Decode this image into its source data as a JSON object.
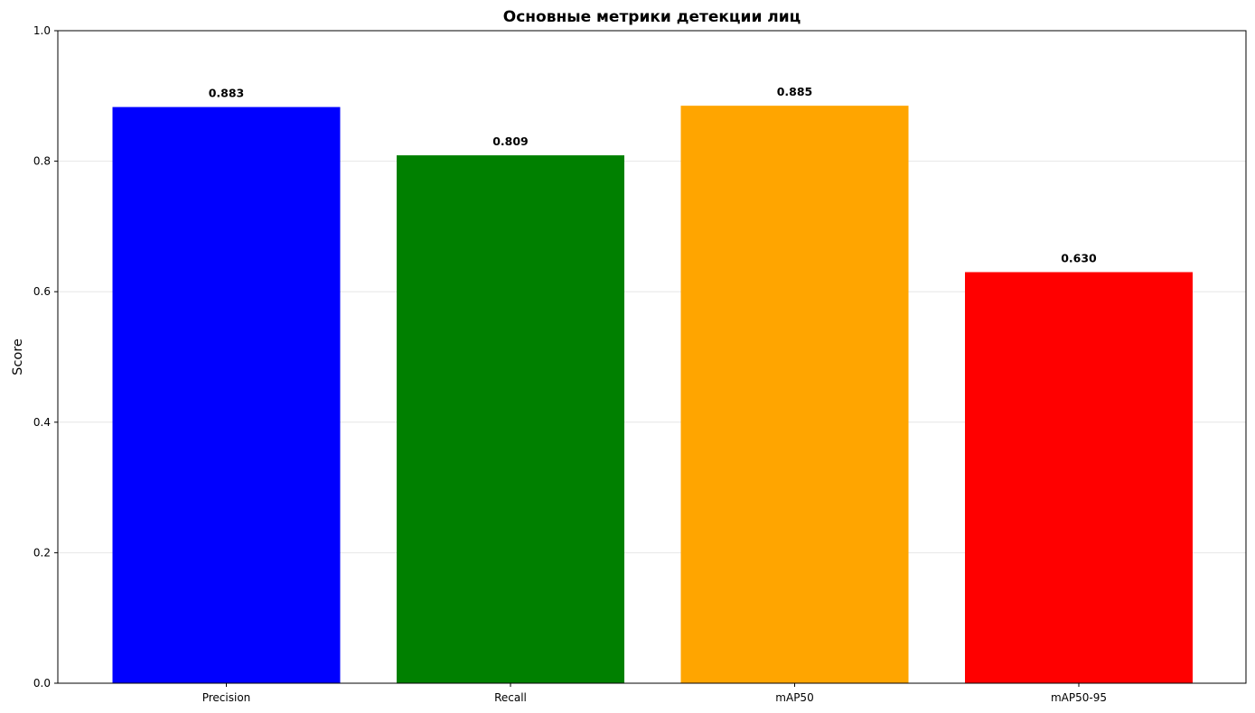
{
  "chart_data": {
    "type": "bar",
    "title": "Основные метрики детекции лиц",
    "xlabel": "",
    "ylabel": "Score",
    "categories": [
      "Precision",
      "Recall",
      "mAP50",
      "mAP50-95"
    ],
    "values": [
      0.883,
      0.809,
      0.885,
      0.63
    ],
    "value_labels": [
      "0.883",
      "0.809",
      "0.885",
      "0.630"
    ],
    "colors": [
      "#0000ff",
      "#008000",
      "#ffa500",
      "#ff0000"
    ],
    "ylim": [
      0,
      1.0
    ],
    "yticks": [
      0.0,
      0.2,
      0.4,
      0.6,
      0.8,
      1.0
    ],
    "ytick_labels": [
      "0.0",
      "0.2",
      "0.4",
      "0.6",
      "0.8",
      "1.0"
    ],
    "grid": "y-axis, light",
    "legend": "none"
  }
}
